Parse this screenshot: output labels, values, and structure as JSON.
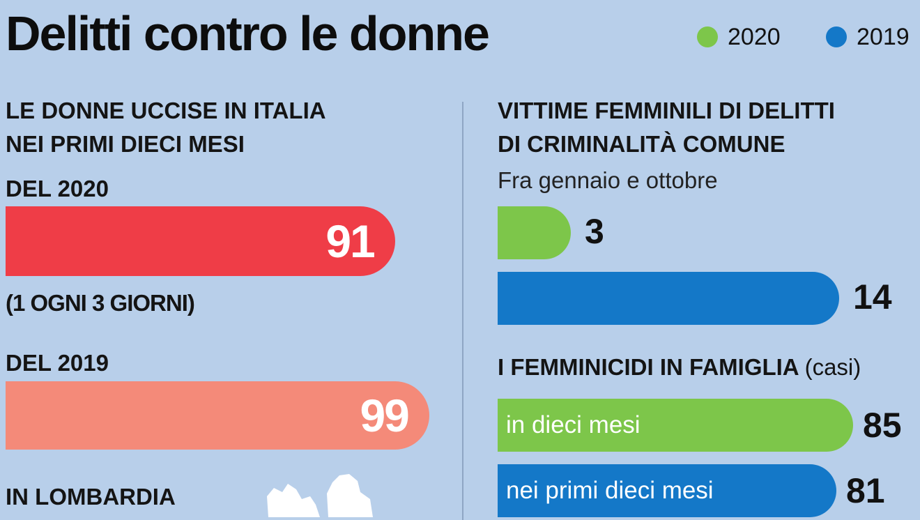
{
  "title": "Delitti contro le donne",
  "legend": [
    {
      "label": "2020",
      "color": "#7dc64a"
    },
    {
      "label": "2019",
      "color": "#1478c8"
    }
  ],
  "left": {
    "heading_line1": "LE DONNE UCCISE IN ITALIA",
    "heading_line2": "NEI PRIMI DIECI MESI",
    "year2020_label": "DEL 2020",
    "year2019_label": "DEL 2019",
    "note": "(1 OGNI 3 GIORNI)",
    "lombardia_label": "IN LOMBARDIA"
  },
  "right": {
    "heading_line1": "VITTIME FEMMINILI DI DELITTI",
    "heading_line2": "DI CRIMINALITÀ COMUNE",
    "subheading": "Fra gennaio e ottobre",
    "famiglia_heading": "I FEMMINICIDI IN FAMIGLIA",
    "famiglia_unit": "(casi)"
  },
  "chart_data": [
    {
      "type": "bar",
      "title": "LE DONNE UCCISE IN ITALIA NEI PRIMI DIECI MESI",
      "categories": [
        "DEL 2020",
        "DEL 2019"
      ],
      "values": [
        91,
        99
      ],
      "colors": [
        "#ef3d47",
        "#f48a79"
      ],
      "labels": [
        "91",
        "99"
      ],
      "annotation": "(1 OGNI 3 GIORNI)"
    },
    {
      "type": "bar",
      "title": "VITTIME FEMMINILI DI DELITTI DI CRIMINALITÀ COMUNE",
      "subtitle": "Fra gennaio e ottobre",
      "categories": [
        "2020",
        "2019"
      ],
      "values": [
        3,
        14
      ],
      "colors": [
        "#7dc64a",
        "#1478c8"
      ],
      "labels": [
        "3",
        "14"
      ]
    },
    {
      "type": "bar",
      "title": "I FEMMINICIDI IN FAMIGLIA (casi)",
      "categories": [
        "in dieci mesi",
        "nei primi dieci mesi"
      ],
      "values": [
        85,
        81
      ],
      "colors": [
        "#7dc64a",
        "#1478c8"
      ],
      "labels": [
        "85",
        "81"
      ]
    }
  ]
}
